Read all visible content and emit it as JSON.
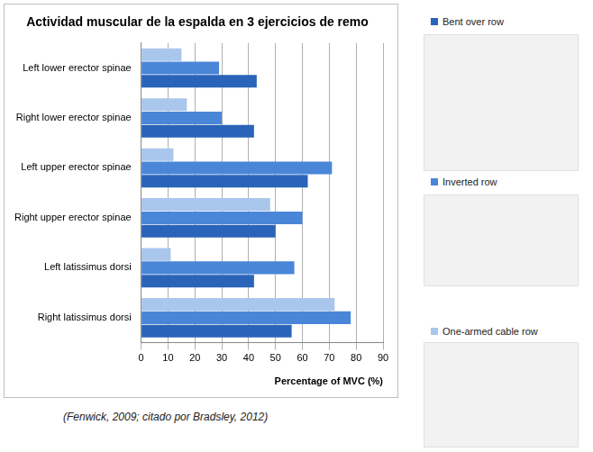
{
  "chart_data": {
    "type": "bar",
    "orientation": "horizontal",
    "title": "Actividad muscular de la espalda en 3 ejercicios de remo",
    "x_label": "Percentage of MVC (%)",
    "annotations": [
      "(Fenwick, 2009; citado por Bradsley, 2012)"
    ],
    "categories": [
      "Left lower erector spinae",
      "Right lower erector spinae",
      "Left upper erector spinae",
      "Right upper erector spinae",
      "Left latissimus dorsi",
      "Right latissimus dorsi"
    ],
    "series": [
      {
        "name": "Bent over row",
        "color": "#2a64b8",
        "values": [
          43,
          42,
          62,
          50,
          42,
          56
        ]
      },
      {
        "name": "Inverted row",
        "color": "#4a86d8",
        "values": [
          29,
          30,
          71,
          60,
          57,
          78
        ]
      },
      {
        "name": "One-armed cable row",
        "color": "#a9c6ec",
        "values": [
          15,
          17,
          12,
          48,
          11,
          72
        ]
      }
    ],
    "xlim": [
      0,
      90
    ],
    "xticks": [
      0,
      10,
      20,
      30,
      40,
      50,
      60,
      70,
      80,
      90
    ],
    "grid": true,
    "legend": "right"
  }
}
